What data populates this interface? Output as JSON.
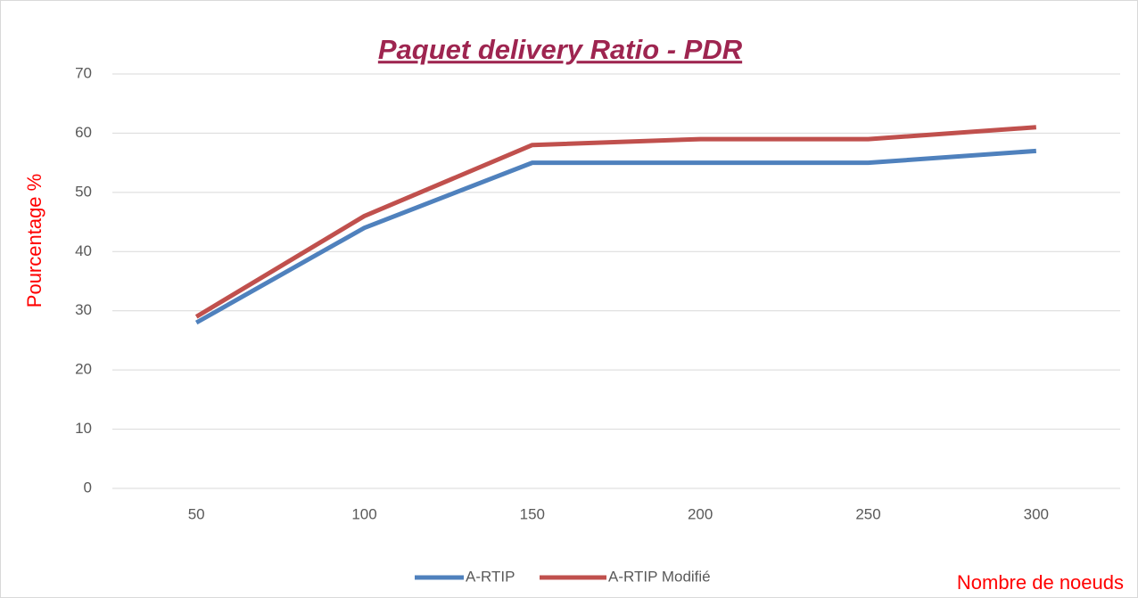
{
  "chart_data": {
    "type": "line",
    "title": "Paquet delivery Ratio - PDR",
    "y_label": "Pourcentage %",
    "x_label": "Nombre de noeuds",
    "categories": [
      "50",
      "100",
      "150",
      "200",
      "250",
      "300"
    ],
    "series": [
      {
        "name": "A-RTIP",
        "color": "#4f81bd",
        "values": [
          28,
          44,
          55,
          55,
          55,
          57
        ]
      },
      {
        "name": "A-RTIP Modifié",
        "color": "#c0504d",
        "values": [
          29,
          46,
          58,
          59,
          59,
          61
        ]
      }
    ],
    "ylim": [
      0,
      70
    ],
    "yticks": [
      0,
      10,
      20,
      30,
      40,
      50,
      60,
      70
    ],
    "grid": true,
    "legend": "bottom"
  }
}
